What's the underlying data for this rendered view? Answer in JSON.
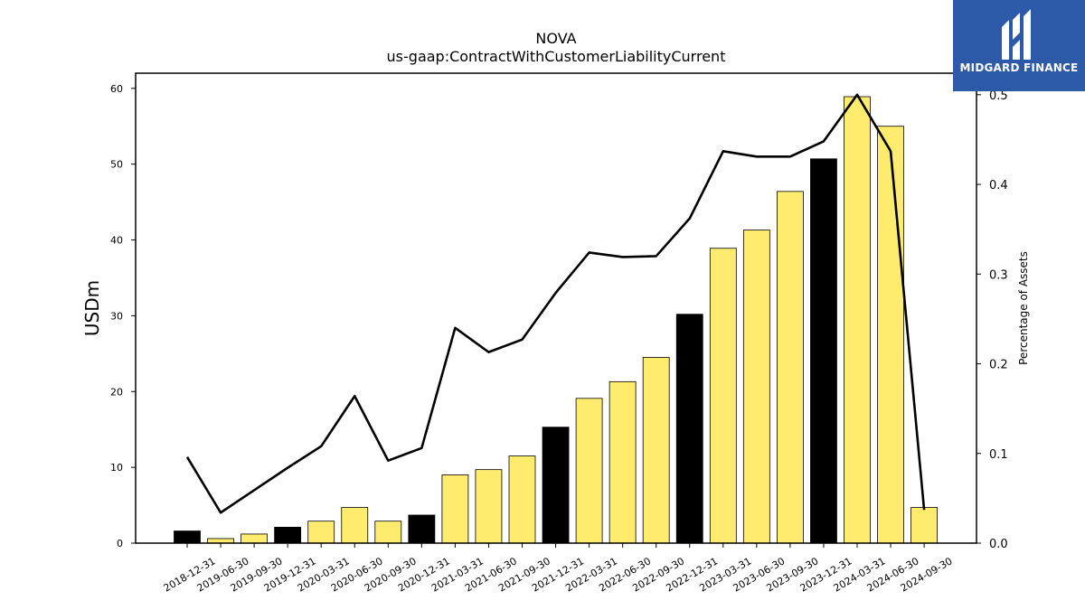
{
  "brand": {
    "name": "MIDGARD FINANCE",
    "logo_icon": "midgard-m-logo-icon",
    "background_color": "#2d5aa8"
  },
  "chart_data": {
    "type": "bar",
    "title": "NOVA",
    "subtitle": "us-gaap:ContractWithCustomerLiabilityCurrent",
    "ylabel": "USDm",
    "ylabel_right": "Percentage of Assets",
    "ylim": [
      0,
      62
    ],
    "ylim_right": [
      0,
      0.524
    ],
    "yticks": [
      0,
      10,
      20,
      30,
      40,
      50,
      60
    ],
    "yticks_right": [
      "0.0",
      "0.1",
      "0.2",
      "0.3",
      "0.4",
      "0.5"
    ],
    "yticks_right_values": [
      0,
      0.1,
      0.2,
      0.3,
      0.4,
      0.5
    ],
    "grid": false,
    "colors": {
      "annual": "#000000",
      "quarterly": "#ffec6e",
      "line": "#000000"
    },
    "categories": [
      "2018-12-31",
      "2019-06-30",
      "2019-09-30",
      "2019-12-31",
      "2020-03-31",
      "2020-06-30",
      "2020-09-30",
      "2020-12-31",
      "2021-03-31",
      "2021-06-30",
      "2021-09-30",
      "2021-12-31",
      "2022-03-31",
      "2022-06-30",
      "2022-09-30",
      "2022-12-31",
      "2023-03-31",
      "2023-06-30",
      "2023-09-30",
      "2023-12-31",
      "2024-03-31",
      "2024-06-30",
      "2024-09-30"
    ],
    "values": [
      1.6,
      0.6,
      1.2,
      2.1,
      2.9,
      4.7,
      2.9,
      3.7,
      9.0,
      9.7,
      11.5,
      15.3,
      19.1,
      21.3,
      24.5,
      30.2,
      38.9,
      41.3,
      46.4,
      50.7,
      58.9,
      55.0,
      4.7
    ],
    "bar_kind": [
      "annual",
      "quarterly",
      "quarterly",
      "annual",
      "quarterly",
      "quarterly",
      "quarterly",
      "annual",
      "quarterly",
      "quarterly",
      "quarterly",
      "annual",
      "quarterly",
      "quarterly",
      "quarterly",
      "annual",
      "quarterly",
      "quarterly",
      "quarterly",
      "annual",
      "quarterly",
      "quarterly",
      "quarterly"
    ],
    "line_values": [
      0.096,
      0.034,
      0.059,
      0.084,
      0.108,
      0.164,
      0.092,
      0.106,
      0.24,
      0.213,
      0.227,
      0.279,
      0.324,
      0.319,
      0.32,
      0.362,
      0.437,
      0.431,
      0.431,
      0.448,
      0.5,
      0.437,
      0.037
    ]
  }
}
